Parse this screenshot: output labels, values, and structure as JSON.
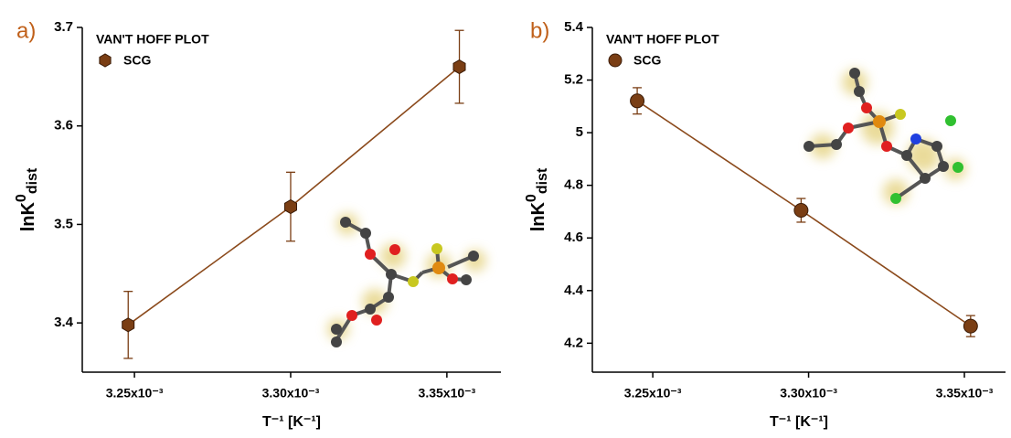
{
  "chart_data": [
    {
      "type": "line",
      "panel_label": "a)",
      "legend_title": "VAN'T HOFF PLOT",
      "x": [
        0.003248,
        0.0033,
        0.003354
      ],
      "series": [
        {
          "name": "SCG",
          "color": "#7a3e14",
          "marker": "hexagon",
          "values": [
            3.398,
            3.518,
            3.66
          ],
          "errors": [
            0.034,
            0.035,
            0.037
          ]
        }
      ],
      "xlim": [
        0.0032333,
        0.0033673
      ],
      "ylim": [
        3.35,
        3.7
      ],
      "xticks": [
        {
          "value": 0.00325,
          "label": "3.25x10⁻³"
        },
        {
          "value": 0.0033,
          "label": "3.30x10⁻³"
        },
        {
          "value": 0.00335,
          "label": "3.35x10⁻³"
        }
      ],
      "yticks": [
        3.4,
        3.5,
        3.6,
        3.7
      ],
      "xlabel": "T⁻¹ [K⁻¹]",
      "ylabel": {
        "main": "lnK",
        "sup": "0",
        "sub": "dist"
      }
    },
    {
      "type": "line",
      "panel_label": "b)",
      "legend_title": "VAN'T HOFF PLOT",
      "x": [
        0.003245,
        0.0032976,
        0.003352
      ],
      "series": [
        {
          "name": "SCG",
          "color": "#7a3e14",
          "marker": "circle",
          "values": [
            5.121,
            4.705,
            4.265
          ],
          "errors": [
            0.05,
            0.045,
            0.04
          ]
        }
      ],
      "xlim": [
        0.0032306,
        0.0033632
      ],
      "ylim": [
        4.09,
        5.4
      ],
      "xticks": [
        {
          "value": 0.00325,
          "label": "3.25x10⁻³"
        },
        {
          "value": 0.0033,
          "label": "3.30x10⁻³"
        },
        {
          "value": 0.00335,
          "label": "3.35x10⁻³"
        }
      ],
      "yticks": [
        4.2,
        4.4,
        4.6,
        4.8,
        5.0,
        5.2,
        5.4
      ],
      "xlabel": "T⁻¹ [K⁻¹]",
      "ylabel": {
        "main": "lnK",
        "sup": "0",
        "sub": "dist"
      }
    }
  ]
}
